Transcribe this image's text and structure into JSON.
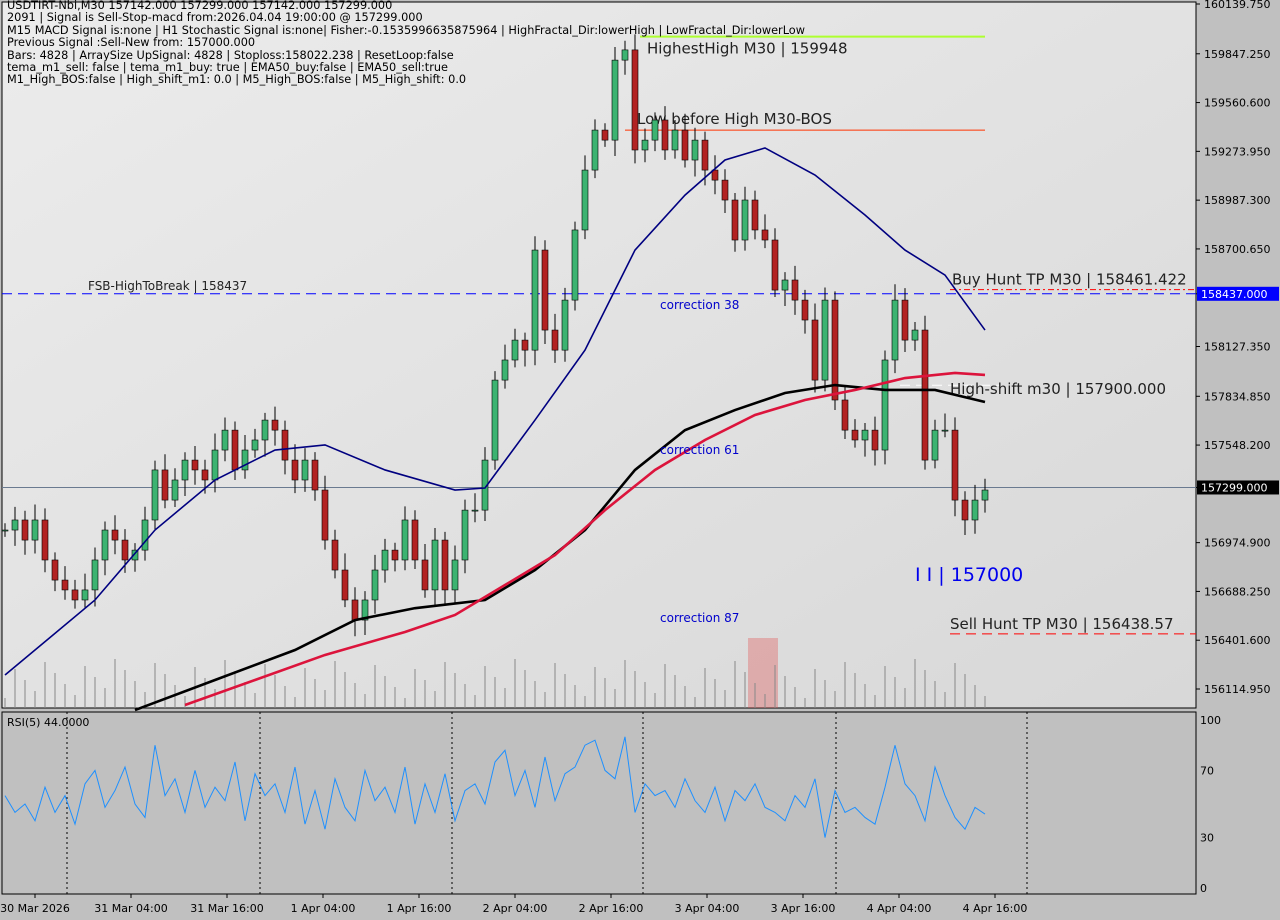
{
  "header": {
    "lines": [
      "USDTIRT-Nbi,M30  157142.000 157299.000 157142.000 157299.000",
      "2091 | Signal is Sell-Stop-macd from:2026.04.04 19:00:00 @ 157299.000",
      "M15 MACD Signal is:none | H1 Stochastic Signal is:none| Fisher:-0.1535996635875964 | HighFractal_Dir:lowerHigh | LowFractal_Dir:lowerLow",
      "Previous Signal :Sell-New from: 157000.000",
      "Bars: 4828 | ArraySize UpSignal: 4828 | Stoploss:158022.238 | ResetLoop:false",
      "tema_m1_sell: false | tema_m1_buy: true | EMA50_buy:false | EMA50_sell:true",
      "M1_High_BOS:false | High_shift_m1: 0.0 | M5_High_BOS:false | M5_High_shift: 0.0"
    ]
  },
  "chart_data": {
    "type": "candlestick",
    "symbol": "USDTIRT-Nbi",
    "timeframe": "M30",
    "ylim": [
      156114.95,
      160139.75
    ],
    "yticks": [
      "160139.750",
      "159847.250",
      "159560.600",
      "159273.950",
      "158987.300",
      "158700.650",
      "158437.000",
      "158127.350",
      "157834.850",
      "157548.200",
      "157299.000",
      "156974.900",
      "156688.250",
      "156401.600",
      "156114.950"
    ],
    "xticks": [
      "30 Mar 2026",
      "31 Mar 04:00",
      "31 Mar 16:00",
      "1 Apr 04:00",
      "1 Apr 16:00",
      "2 Apr 04:00",
      "2 Apr 16:00",
      "3 Apr 04:00",
      "3 Apr 16:00",
      "4 Apr 04:00",
      "4 Apr 16:00"
    ],
    "closes": [
      157049,
      157108,
      156990,
      157108,
      156873,
      156755,
      156697,
      156638,
      156697,
      156873,
      157049,
      156990,
      156873,
      156931,
      157108,
      157402,
      157225,
      157343,
      157460,
      157402,
      157343,
      157519,
      157636,
      157402,
      157519,
      157578,
      157695,
      157636,
      157460,
      157343,
      157460,
      157284,
      156990,
      156814,
      156638,
      156520,
      156638,
      156814,
      156931,
      156873,
      157108,
      156873,
      156697,
      156990,
      156697,
      156873,
      157166,
      157166,
      157460,
      157930,
      158048,
      158165,
      158106,
      158694,
      158224,
      158106,
      158400,
      158812,
      159164,
      159399,
      159340,
      159810,
      159870,
      159282,
      159340,
      159458,
      159282,
      159399,
      159223,
      159340,
      159164,
      159105,
      158988,
      158753,
      158988,
      158812,
      158753,
      158459,
      158518,
      158400,
      158283,
      157930,
      158400,
      157813,
      157636,
      157578,
      157636,
      157519,
      158048,
      158400,
      158165,
      158224,
      157460,
      157636,
      157636,
      157225,
      157108,
      157225,
      157284
    ],
    "moving_averages": [
      {
        "color": "#000080",
        "points": [
          [
            0,
            156197
          ],
          [
            9,
            156638
          ],
          [
            15,
            157049
          ],
          [
            21,
            157343
          ],
          [
            27,
            157519
          ],
          [
            32,
            157549
          ],
          [
            38,
            157402
          ],
          [
            45,
            157284
          ],
          [
            48,
            157296
          ],
          [
            53,
            157695
          ],
          [
            58,
            158106
          ],
          [
            63,
            158694
          ],
          [
            68,
            159017
          ],
          [
            72,
            159223
          ],
          [
            76,
            159294
          ],
          [
            81,
            159135
          ],
          [
            86,
            158900
          ],
          [
            90,
            158694
          ],
          [
            94,
            158547
          ],
          [
            98,
            158224
          ]
        ]
      },
      {
        "color": "#000000",
        "points": [
          [
            13,
            155991
          ],
          [
            21,
            156168
          ],
          [
            29,
            156344
          ],
          [
            35,
            156520
          ],
          [
            41,
            156590
          ],
          [
            48,
            156638
          ],
          [
            53,
            156814
          ],
          [
            58,
            157049
          ],
          [
            63,
            157402
          ],
          [
            68,
            157636
          ],
          [
            73,
            157754
          ],
          [
            78,
            157854
          ],
          [
            83,
            157901
          ],
          [
            88,
            157872
          ],
          [
            93,
            157872
          ],
          [
            98,
            157801
          ]
        ]
      },
      {
        "color": "#dc143c",
        "points": [
          [
            18,
            156021
          ],
          [
            25,
            156168
          ],
          [
            32,
            156315
          ],
          [
            40,
            156450
          ],
          [
            45,
            156550
          ],
          [
            50,
            156726
          ],
          [
            55,
            156902
          ],
          [
            60,
            157166
          ],
          [
            65,
            157402
          ],
          [
            70,
            157578
          ],
          [
            75,
            157725
          ],
          [
            80,
            157813
          ],
          [
            85,
            157872
          ],
          [
            90,
            157942
          ],
          [
            95,
            157972
          ],
          [
            98,
            157960
          ]
        ]
      }
    ],
    "levels": [
      {
        "label": "FSB-HighToBreak | 158437",
        "value": 158437,
        "color": "#0000ff",
        "style": "dash",
        "badge": "158437.000",
        "badge_color": "#0000ff"
      },
      {
        "label": "",
        "value": 157299,
        "color": "#6a7a90",
        "style": "solid",
        "badge": "157299.000",
        "badge_color": "#000000"
      },
      {
        "label": "HighestHigh   M30 | 159948",
        "value": 159948,
        "color": "#adff2f",
        "style": "solid"
      },
      {
        "label": "Low before High   M30-BOS",
        "value": 159399,
        "color": "#ff3300",
        "style": "solid"
      },
      {
        "label": "Buy Hunt TP M30 | 158461.422",
        "value": 158461.422,
        "color": "#ff0000",
        "style": "dashdot"
      },
      {
        "label": "High-shift m30 | 157900.000",
        "value": 157900,
        "color": "#ffffff",
        "style": "dash"
      },
      {
        "label": "Sell Hunt TP M30 | 156438.57",
        "value": 156438.57,
        "color": "#ff0000",
        "style": "dash"
      }
    ],
    "annotations": [
      "correction 38",
      "correction 61",
      "correction 87",
      "I I | 157000"
    ],
    "rsi": {
      "label": "RSI(5) 44.0000",
      "ylim": [
        0,
        100
      ],
      "yticks": [
        "100",
        "70",
        "30",
        "0"
      ],
      "values": [
        55,
        45,
        50,
        40,
        60,
        45,
        55,
        38,
        62,
        70,
        48,
        58,
        72,
        50,
        42,
        85,
        55,
        65,
        45,
        70,
        48,
        60,
        52,
        75,
        40,
        68,
        55,
        62,
        45,
        72,
        38,
        58,
        35,
        65,
        48,
        40,
        70,
        52,
        60,
        45,
        72,
        38,
        62,
        45,
        68,
        40,
        58,
        62,
        50,
        75,
        82,
        55,
        70,
        48,
        78,
        52,
        68,
        72,
        85,
        88,
        70,
        65,
        90,
        45,
        62,
        55,
        58,
        48,
        65,
        52,
        45,
        60,
        40,
        58,
        52,
        62,
        48,
        45,
        40,
        55,
        48,
        65,
        30,
        58,
        45,
        48,
        42,
        38,
        60,
        85,
        62,
        55,
        40,
        72,
        55,
        42,
        35,
        48,
        44
      ]
    }
  }
}
